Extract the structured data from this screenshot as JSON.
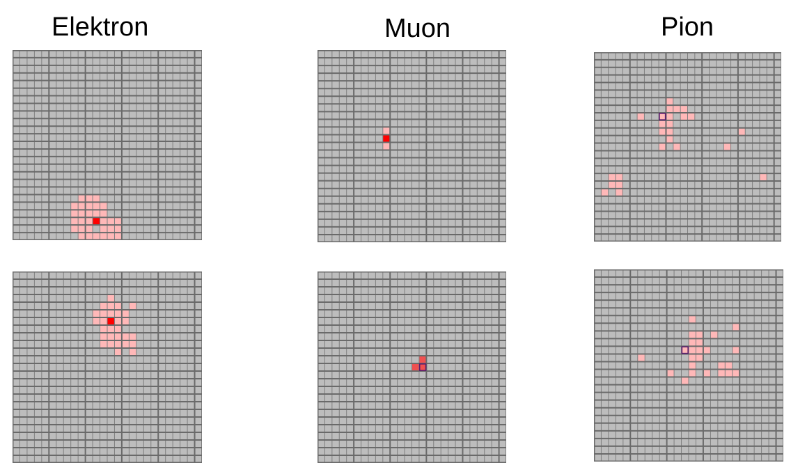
{
  "columns": [
    {
      "title": "Elektron",
      "panels": [
        {
          "name": "elektron-event-1",
          "cells_light": [
            [
              9,
              19
            ],
            [
              10,
              19
            ],
            [
              11,
              19
            ],
            [
              8,
              20
            ],
            [
              9,
              20
            ],
            [
              10,
              20
            ],
            [
              11,
              20
            ],
            [
              12,
              20
            ],
            [
              8,
              21
            ],
            [
              9,
              21
            ],
            [
              10,
              21
            ],
            [
              11,
              21
            ],
            [
              12,
              21
            ],
            [
              8,
              22
            ],
            [
              9,
              22
            ],
            [
              10,
              22
            ],
            [
              12,
              22
            ],
            [
              13,
              22
            ],
            [
              14,
              22
            ],
            [
              8,
              23
            ],
            [
              9,
              23
            ],
            [
              10,
              23
            ],
            [
              12,
              23
            ],
            [
              13,
              23
            ],
            [
              14,
              23
            ],
            [
              9,
              24
            ],
            [
              10,
              24
            ],
            [
              11,
              24
            ],
            [
              12,
              24
            ],
            [
              13,
              24
            ],
            [
              14,
              24
            ],
            [
              8,
              25
            ],
            [
              9,
              25
            ],
            [
              10,
              25
            ],
            [
              11,
              25
            ],
            [
              12,
              25
            ],
            [
              13,
              25
            ],
            [
              14,
              25
            ]
          ],
          "cells_medium": [],
          "cells_hot": [
            [
              11,
              22
            ]
          ],
          "cells_outlined": []
        },
        {
          "name": "elektron-event-2",
          "cells_light": [
            [
              13,
              3
            ],
            [
              12,
              4
            ],
            [
              13,
              4
            ],
            [
              14,
              4
            ],
            [
              16,
              4
            ],
            [
              11,
              5
            ],
            [
              12,
              5
            ],
            [
              13,
              5
            ],
            [
              14,
              5
            ],
            [
              15,
              5
            ],
            [
              11,
              6
            ],
            [
              12,
              6
            ],
            [
              14,
              6
            ],
            [
              15,
              6
            ],
            [
              12,
              7
            ],
            [
              13,
              7
            ],
            [
              14,
              7
            ],
            [
              12,
              8
            ],
            [
              13,
              8
            ],
            [
              14,
              8
            ],
            [
              15,
              8
            ],
            [
              16,
              8
            ],
            [
              12,
              9
            ],
            [
              13,
              9
            ],
            [
              14,
              9
            ],
            [
              15,
              9
            ],
            [
              16,
              9
            ],
            [
              14,
              10
            ],
            [
              16,
              10
            ]
          ],
          "cells_medium": [],
          "cells_hot": [
            [
              13,
              6
            ]
          ],
          "cells_outlined": []
        }
      ]
    },
    {
      "title": "Muon",
      "panels": [
        {
          "name": "muon-event-1",
          "cells_light": [
            [
              9,
              10
            ],
            [
              9,
              12
            ]
          ],
          "cells_medium": [],
          "cells_hot": [
            [
              9,
              11
            ]
          ],
          "cells_outlined": []
        },
        {
          "name": "muon-event-2",
          "cells_light": [],
          "cells_medium": [
            [
              14,
              11
            ],
            [
              13,
              12
            ]
          ],
          "cells_hot": [],
          "cells_outlined": [
            [
              14,
              12
            ]
          ]
        }
      ]
    },
    {
      "title": "Pion",
      "panels": [
        {
          "name": "pion-event-1",
          "cells_light": [
            [
              10,
              6
            ],
            [
              10,
              7
            ],
            [
              11,
              7
            ],
            [
              12,
              7
            ],
            [
              6,
              8
            ],
            [
              9,
              8
            ],
            [
              10,
              8
            ],
            [
              12,
              8
            ],
            [
              13,
              8
            ],
            [
              9,
              9
            ],
            [
              10,
              9
            ],
            [
              9,
              10
            ],
            [
              10,
              10
            ],
            [
              20,
              10
            ],
            [
              10,
              11
            ],
            [
              9,
              12
            ],
            [
              11,
              12
            ],
            [
              18,
              12
            ],
            [
              2,
              16
            ],
            [
              3,
              16
            ],
            [
              23,
              16
            ],
            [
              2,
              17
            ],
            [
              3,
              17
            ],
            [
              1,
              18
            ],
            [
              3,
              18
            ]
          ],
          "cells_medium": [],
          "cells_hot": [],
          "cells_outlined": [
            [
              9,
              8
            ]
          ]
        },
        {
          "name": "pion-event-2",
          "cells_light": [
            [
              13,
              6
            ],
            [
              19,
              7
            ],
            [
              13,
              8
            ],
            [
              14,
              8
            ],
            [
              16,
              8
            ],
            [
              13,
              9
            ],
            [
              14,
              9
            ],
            [
              13,
              10
            ],
            [
              14,
              10
            ],
            [
              15,
              10
            ],
            [
              19,
              10
            ],
            [
              6,
              11
            ],
            [
              13,
              11
            ],
            [
              14,
              11
            ],
            [
              13,
              12
            ],
            [
              17,
              12
            ],
            [
              18,
              12
            ],
            [
              10,
              13
            ],
            [
              13,
              13
            ],
            [
              15,
              13
            ],
            [
              17,
              13
            ],
            [
              18,
              13
            ],
            [
              19,
              13
            ],
            [
              12,
              14
            ]
          ],
          "cells_medium": [],
          "cells_hot": [],
          "cells_outlined": [
            [
              12,
              10
            ]
          ]
        }
      ]
    }
  ],
  "grid": {
    "cols": 26,
    "rows": 25,
    "bg_color": "#bdbdbd",
    "line_color": "#7f7f7f",
    "major_line_color": "#6a6a6a",
    "light_color": "#ffb8b8",
    "medium_color": "#f05050",
    "hot_color": "#ff0000",
    "outline_color": "#5a1e6e"
  }
}
